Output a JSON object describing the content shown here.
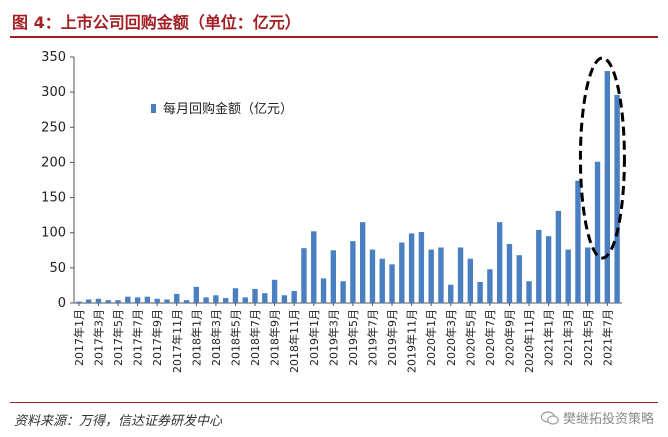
{
  "header": {
    "title": "图 4：上市公司回购金额（单位：亿元）"
  },
  "footer": {
    "source": "资料来源：万得，信达证券研发中心",
    "watermark": "樊继拓投资策略"
  },
  "chart_data": {
    "type": "bar",
    "title": "",
    "xlabel": "",
    "ylabel": "",
    "ylim": [
      0,
      350
    ],
    "yticks": [
      0,
      50,
      100,
      150,
      200,
      250,
      300,
      350
    ],
    "grid": false,
    "legend": "top-left",
    "bar_color": "#4a7fc1",
    "annotation_color": "#000000",
    "categories": [
      "2017年1月",
      "2017年2月",
      "2017年3月",
      "2017年4月",
      "2017年5月",
      "2017年6月",
      "2017年7月",
      "2017年8月",
      "2017年9月",
      "2017年10月",
      "2017年11月",
      "2017年12月",
      "2018年1月",
      "2018年2月",
      "2018年3月",
      "2018年4月",
      "2018年5月",
      "2018年6月",
      "2018年7月",
      "2018年8月",
      "2018年9月",
      "2018年10月",
      "2018年11月",
      "2018年12月",
      "2019年1月",
      "2019年2月",
      "2019年3月",
      "2019年4月",
      "2019年5月",
      "2019年6月",
      "2019年7月",
      "2019年8月",
      "2019年9月",
      "2019年10月",
      "2019年11月",
      "2019年12月",
      "2020年1月",
      "2020年2月",
      "2020年3月",
      "2020年4月",
      "2020年5月",
      "2020年6月",
      "2020年7月",
      "2020年8月",
      "2020年9月",
      "2020年10月",
      "2020年11月",
      "2020年12月",
      "2021年1月",
      "2021年2月",
      "2021年3月",
      "2021年4月",
      "2021年5月",
      "2021年6月",
      "2021年7月",
      "2021年8月"
    ],
    "tick_labels": [
      "2017年1月",
      "2017年3月",
      "2017年5月",
      "2017年7月",
      "2017年9月",
      "2017年11月",
      "2018年1月",
      "2018年3月",
      "2018年5月",
      "2018年7月",
      "2018年9月",
      "2018年11月",
      "2019年1月",
      "2019年3月",
      "2019年5月",
      "2019年7月",
      "2019年9月",
      "2019年11月",
      "2020年1月",
      "2020年3月",
      "2020年5月",
      "2020年7月",
      "2020年9月",
      "2020年11月",
      "2021年1月",
      "2021年3月",
      "2021年5月",
      "2021年7月"
    ],
    "series": [
      {
        "name": "每月回购金额（亿元）",
        "values": [
          2,
          5,
          6,
          4,
          4,
          9,
          8,
          9,
          6,
          5,
          13,
          4,
          23,
          8,
          11,
          7,
          21,
          8,
          20,
          14,
          33,
          11,
          17,
          78,
          102,
          35,
          75,
          31,
          88,
          115,
          76,
          63,
          55,
          86,
          99,
          101,
          76,
          79,
          26,
          79,
          63,
          30,
          48,
          115,
          84,
          68,
          31,
          104,
          95,
          131,
          76,
          174,
          79,
          201,
          330,
          296
        ]
      }
    ],
    "annotation": {
      "type": "dashed-ellipse",
      "highlights": [
        "2021年6月",
        "2021年7月"
      ]
    }
  }
}
